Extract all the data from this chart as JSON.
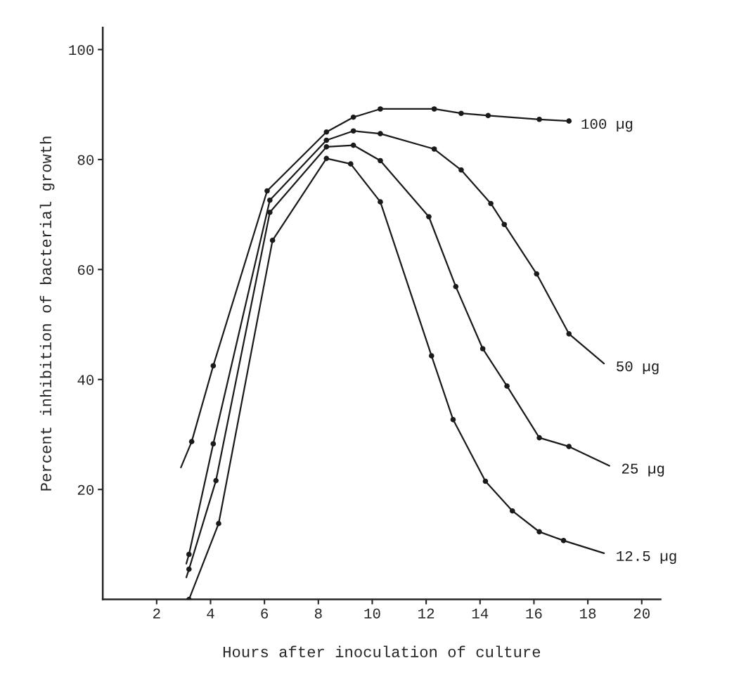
{
  "chart_data": {
    "type": "line",
    "xlabel": "Hours after inoculation of culture",
    "ylabel": "Percent inhibition of bacterial growth",
    "xlim": [
      0,
      20.7
    ],
    "ylim": [
      0,
      104
    ],
    "xticks": [
      2,
      4,
      6,
      8,
      10,
      12,
      14,
      16,
      18,
      20
    ],
    "yticks": [
      20,
      40,
      60,
      80,
      100
    ],
    "grid": false,
    "legend": false,
    "marker": "none",
    "series": [
      {
        "name": "100 µg",
        "color": "#1a1a1a",
        "x": [
          2.9,
          3.3,
          4.1,
          6.1,
          8.3,
          9.3,
          10.3,
          12.3,
          13.3,
          14.3,
          16.2,
          17.3
        ],
        "values": [
          24,
          28.7,
          42.5,
          74.3,
          85,
          87.7,
          89.2,
          89.2,
          88.4,
          88,
          87.3,
          87
        ]
      },
      {
        "name": "50 µg",
        "color": "#1a1a1a",
        "x": [
          3.1,
          3.2,
          4.1,
          6.2,
          8.3,
          9.3,
          10.3,
          12.3,
          13.3,
          14.4,
          14.9,
          16.1,
          17.3,
          18.6
        ],
        "values": [
          6.5,
          8.2,
          28.3,
          72.6,
          83.5,
          85.2,
          84.7,
          81.9,
          78.1,
          72,
          68.2,
          59.2,
          48.3,
          42.9
        ]
      },
      {
        "name": "25 µg",
        "color": "#1a1a1a",
        "x": [
          3.1,
          3.2,
          4.2,
          6.2,
          8.3,
          9.3,
          10.3,
          12.1,
          13.1,
          14.1,
          15,
          16.2,
          17.3,
          18.8
        ],
        "values": [
          4,
          5.5,
          21.6,
          70.4,
          82.3,
          82.6,
          79.8,
          69.6,
          56.9,
          45.6,
          38.8,
          29.4,
          27.8,
          24.3
        ]
      },
      {
        "name": "12.5 µg",
        "color": "#1a1a1a",
        "x": [
          3.2,
          4.3,
          6.3,
          8.3,
          9.2,
          10.3,
          12.2,
          13,
          14.2,
          15.2,
          16.2,
          17.1,
          18.6
        ],
        "values": [
          0,
          13.8,
          65.3,
          80.2,
          79.2,
          72.3,
          44.3,
          32.7,
          21.5,
          16.1,
          12.3,
          10.7,
          8.4
        ]
      },
      {
        "type": "scatter",
        "marker": "circle",
        "color": "#1a1a1a",
        "x": [
          3.3,
          4.1,
          6.1,
          8.3,
          9.3,
          10.3,
          12.3,
          13.3,
          14.3,
          16.2,
          17.3
        ],
        "values": [
          28.7,
          42.5,
          74.3,
          85,
          87.7,
          89.2,
          89.2,
          88.4,
          88,
          87.3,
          87
        ]
      },
      {
        "type": "scatter",
        "marker": "circle",
        "color": "#1a1a1a",
        "x": [
          3.2,
          4.1,
          6.2,
          8.3,
          9.3,
          10.3,
          12.3,
          13.3,
          14.4,
          14.9,
          16.1,
          17.3
        ],
        "values": [
          8.2,
          28.3,
          72.6,
          83.5,
          85.2,
          84.7,
          81.9,
          78.1,
          72,
          68.2,
          59.2,
          48.3
        ]
      },
      {
        "type": "scatter",
        "marker": "circle",
        "color": "#1a1a1a",
        "x": [
          3.2,
          4.2,
          6.2,
          8.3,
          9.3,
          10.3,
          12.1,
          13.1,
          14.1,
          15,
          16.2,
          17.3
        ],
        "values": [
          5.5,
          21.6,
          70.4,
          82.3,
          82.6,
          79.8,
          69.6,
          56.9,
          45.6,
          38.8,
          29.4,
          27.8
        ]
      },
      {
        "type": "scatter",
        "marker": "circle",
        "color": "#1a1a1a",
        "x": [
          3.2,
          4.3,
          6.3,
          8.3,
          9.2,
          10.3,
          12.2,
          13,
          14.2,
          15.2,
          16.2,
          17.1
        ],
        "values": [
          0,
          13.8,
          65.3,
          80.2,
          79.2,
          72.3,
          44.3,
          32.7,
          21.5,
          16.1,
          12.3,
          10.7
        ]
      }
    ]
  }
}
